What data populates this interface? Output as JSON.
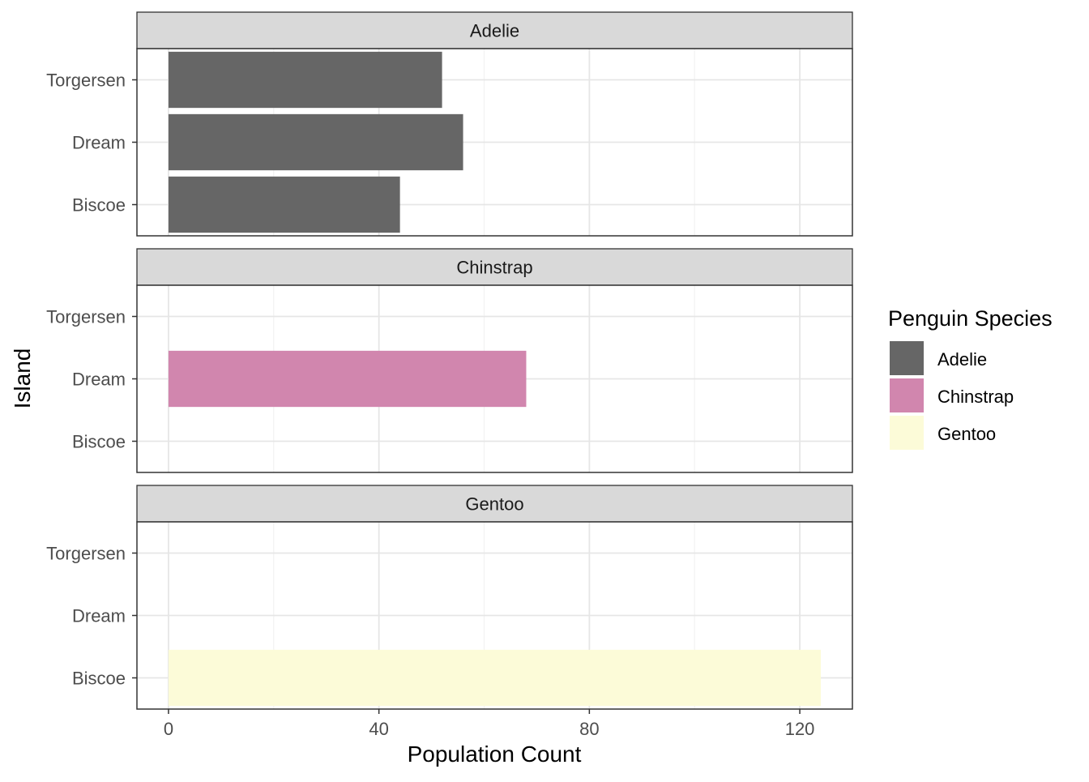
{
  "chart_data": {
    "type": "bar",
    "orientation": "horizontal",
    "facet_by": "species",
    "xlabel": "Population Count",
    "ylabel": "Island",
    "xlim": [
      -6,
      130
    ],
    "x_ticks": [
      0,
      40,
      80,
      120
    ],
    "x_minor_grid": [
      20,
      60,
      100
    ],
    "categories": [
      "Torgersen",
      "Dream",
      "Biscoe"
    ],
    "grid": true,
    "legend": {
      "title": "Penguin Species",
      "placement": "right"
    },
    "series": [
      {
        "name": "Adelie",
        "color": "#666666",
        "values": [
          52,
          56,
          44
        ]
      },
      {
        "name": "Chinstrap",
        "color": "#D186AE",
        "values": [
          0,
          68,
          0
        ]
      },
      {
        "name": "Gentoo",
        "color": "#FCFBD8",
        "values": [
          0,
          0,
          124
        ]
      }
    ]
  }
}
